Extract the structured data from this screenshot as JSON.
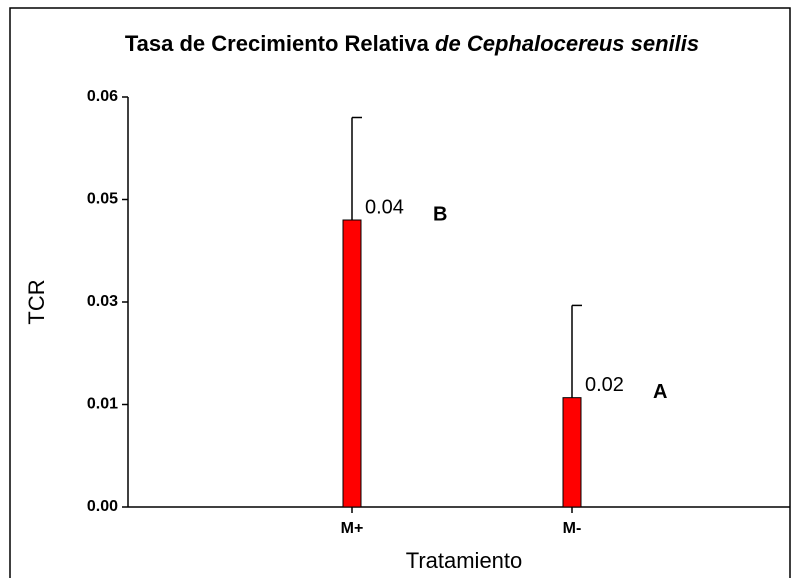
{
  "chart_data": {
    "type": "bar",
    "title": [
      "Tasa de Crecimiento Relativa",
      "de Cephalocereus senilis"
    ],
    "xlabel": "Tratamiento",
    "ylabel": "TCR",
    "categories": [
      "M+",
      "M-"
    ],
    "values": [
      0.042,
      0.016
    ],
    "value_labels": [
      "0.04",
      "0.02"
    ],
    "errors": [
      0.015,
      0.0135
    ],
    "annotations": [
      "B",
      "A"
    ],
    "color": "#ff0000",
    "ylim": [
      0,
      0.06
    ],
    "yticks": [
      {
        "value": 0,
        "label": "0.00"
      },
      {
        "value": 0.015,
        "label": "0.01"
      },
      {
        "value": 0.03,
        "label": "0.03"
      },
      {
        "value": 0.045,
        "label": "0.05"
      },
      {
        "value": 0.06,
        "label": "0.06"
      }
    ],
    "grid": false
  }
}
